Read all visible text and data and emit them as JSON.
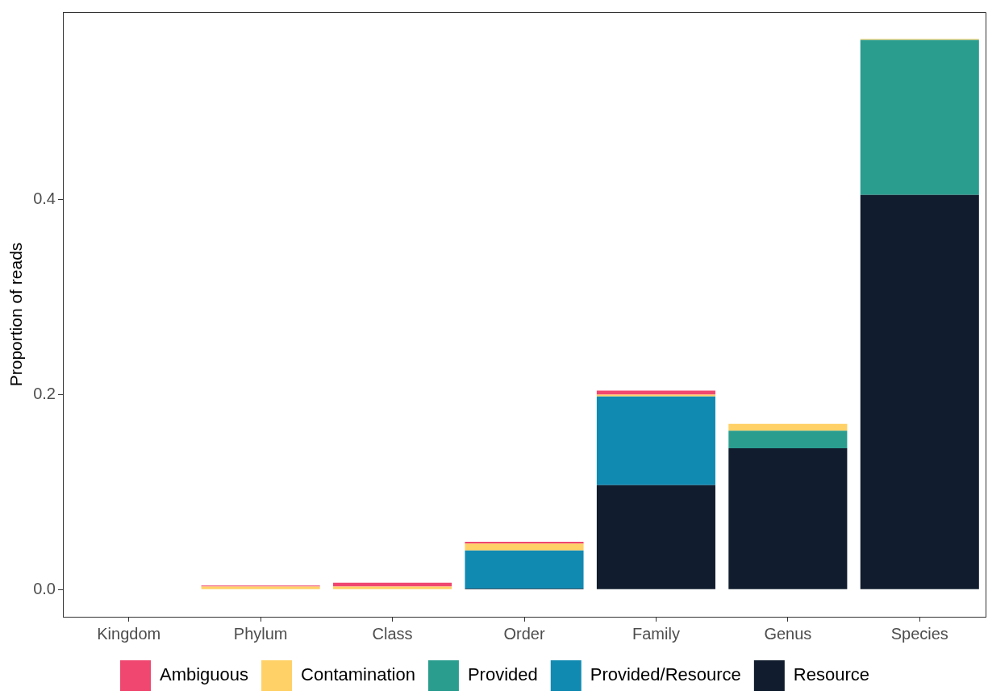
{
  "chart_data": {
    "type": "bar",
    "stacked": true,
    "ylabel": "Proportion of reads",
    "categories": [
      "Kingdom",
      "Phylum",
      "Class",
      "Order",
      "Family",
      "Genus",
      "Species"
    ],
    "series": [
      {
        "name": "Resource",
        "color": "#111d2e",
        "values": [
          0,
          0,
          0,
          0.001,
          0.107,
          0.145,
          0.405
        ]
      },
      {
        "name": "Provided/Resource",
        "color": "#118ab2",
        "values": [
          0,
          0,
          0,
          0.039,
          0.091,
          0,
          0
        ]
      },
      {
        "name": "Provided",
        "color": "#2a9d8f",
        "values": [
          0,
          0,
          0,
          0,
          0,
          0.018,
          0.159
        ]
      },
      {
        "name": "Contamination",
        "color": "#ffd166",
        "values": [
          0,
          0.003,
          0.003,
          0.007,
          0.002,
          0.007,
          0.001
        ]
      },
      {
        "name": "Ambiguous",
        "color": "#ef476f",
        "values": [
          0,
          0.001,
          0.004,
          0.002,
          0.004,
          0,
          0
        ]
      }
    ],
    "ylim": [
      -0.028,
      0.5925
    ],
    "yticks": [
      {
        "value": 0,
        "label": "0.0"
      },
      {
        "value": 0.2,
        "label": "0.2"
      },
      {
        "value": 0.4,
        "label": "0.4"
      }
    ],
    "grid": false,
    "legend": "bottom"
  }
}
